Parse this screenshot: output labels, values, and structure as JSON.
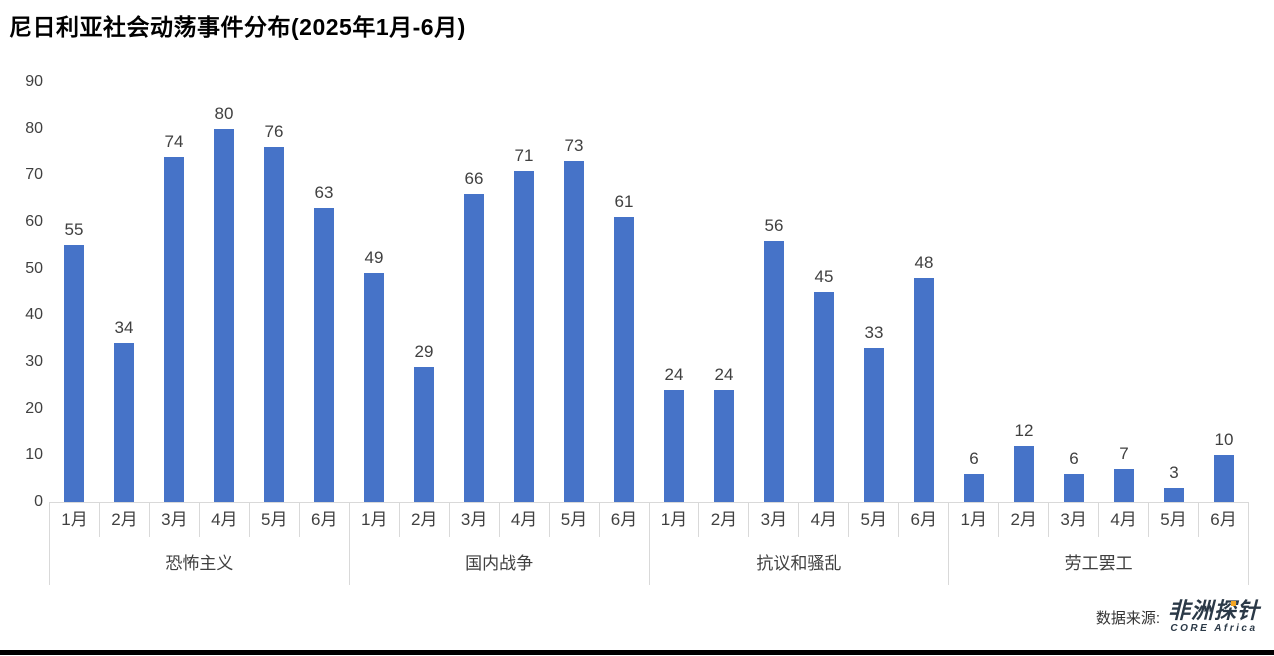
{
  "title": "尼日利亚社会动荡事件分布(2025年1月-6月)",
  "source": {
    "label": "数据来源:",
    "logo_cn": "非洲探针",
    "logo_en": "CORE Africa"
  },
  "colors": {
    "bar": "#4673C8",
    "axis_line": "#d9d9d9",
    "text": "#404040",
    "logo": "#2b3947",
    "logo_accent": "#f5a623",
    "bottom_strip": "#000000"
  },
  "chart_data": {
    "type": "bar",
    "title": "尼日利亚社会动荡事件分布(2025年1月-6月)",
    "xlabel": "",
    "ylabel": "",
    "ylim": [
      0,
      90
    ],
    "yticks": [
      0,
      10,
      20,
      30,
      40,
      50,
      60,
      70,
      80,
      90
    ],
    "grid": false,
    "legend": false,
    "months": [
      "1月",
      "2月",
      "3月",
      "4月",
      "5月",
      "6月"
    ],
    "groups": [
      {
        "name": "恐怖主义",
        "values": [
          55,
          34,
          74,
          80,
          76,
          63
        ]
      },
      {
        "name": "国内战争",
        "values": [
          49,
          29,
          66,
          71,
          73,
          61
        ]
      },
      {
        "name": "抗议和骚乱",
        "values": [
          24,
          24,
          56,
          45,
          33,
          48
        ]
      },
      {
        "name": "劳工罢工",
        "values": [
          6,
          12,
          6,
          7,
          3,
          10
        ]
      }
    ]
  }
}
